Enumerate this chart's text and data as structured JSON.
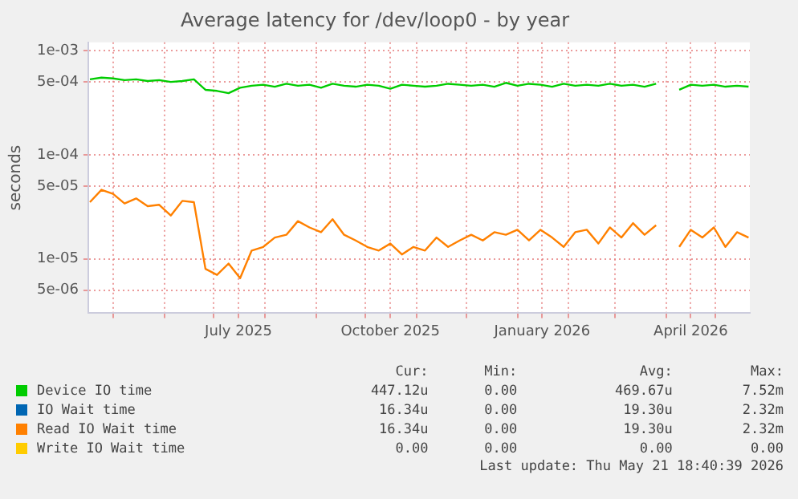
{
  "chart_data": {
    "type": "line",
    "title": "Average latency for /dev/loop0 - by year",
    "ylabel": "seconds",
    "log": "y",
    "grid": true,
    "legend": "bottom",
    "marker": "none",
    "line_style": "solid",
    "x": [
      "2025-04-17",
      "2025-04-24",
      "2025-05-01",
      "2025-05-08",
      "2025-05-15",
      "2025-05-22",
      "2025-05-29",
      "2025-06-05",
      "2025-06-12",
      "2025-06-19",
      "2025-06-26",
      "2025-07-03",
      "2025-07-10",
      "2025-07-17",
      "2025-07-24",
      "2025-07-31",
      "2025-08-07",
      "2025-08-14",
      "2025-08-21",
      "2025-08-28",
      "2025-09-04",
      "2025-09-11",
      "2025-09-18",
      "2025-09-25",
      "2025-10-02",
      "2025-10-09",
      "2025-10-16",
      "2025-10-23",
      "2025-10-30",
      "2025-11-06",
      "2025-11-13",
      "2025-11-20",
      "2025-11-27",
      "2025-12-04",
      "2025-12-11",
      "2025-12-18",
      "2025-12-25",
      "2026-01-01",
      "2026-01-08",
      "2026-01-15",
      "2026-01-22",
      "2026-01-29",
      "2026-02-05",
      "2026-02-12",
      "2026-02-19",
      "2026-02-26",
      "2026-03-05",
      "2026-03-12",
      "2026-03-19",
      "2026-03-26",
      "2026-04-02",
      "2026-04-09",
      "2026-04-16",
      "2026-04-23",
      "2026-04-30",
      "2026-05-07",
      "2026-05-14",
      "2026-05-21"
    ],
    "xlim": [
      "2025-04-16",
      "2026-05-21T18:40"
    ],
    "xticks": [
      {
        "value": "2025-05-01",
        "label": null
      },
      {
        "value": "2025-06-01",
        "label": null
      },
      {
        "value": "2025-07-01",
        "label": null
      },
      {
        "value": "2025-07-16",
        "label": "July 2025"
      },
      {
        "value": "2025-08-01",
        "label": null
      },
      {
        "value": "2025-09-01",
        "label": null
      },
      {
        "value": "2025-10-01",
        "label": null
      },
      {
        "value": "2025-10-16",
        "label": "October 2025"
      },
      {
        "value": "2025-11-01",
        "label": null
      },
      {
        "value": "2025-12-01",
        "label": null
      },
      {
        "value": "2026-01-01",
        "label": null
      },
      {
        "value": "2026-01-16",
        "label": "January 2026"
      },
      {
        "value": "2026-02-01",
        "label": null
      },
      {
        "value": "2026-03-01",
        "label": null
      },
      {
        "value": "2026-04-01",
        "label": null
      },
      {
        "value": "2026-04-16",
        "label": "April 2026"
      },
      {
        "value": "2026-05-01",
        "label": null
      }
    ],
    "ylim": [
      3e-06,
      0.0012
    ],
    "yticks": [
      {
        "value": 0.001,
        "label": "1e-03"
      },
      {
        "value": 0.0005,
        "label": "5e-04"
      },
      {
        "value": 0.0001,
        "label": "1e-04"
      },
      {
        "value": 5e-05,
        "label": "5e-05"
      },
      {
        "value": 1e-05,
        "label": "1e-05"
      },
      {
        "value": 5e-06,
        "label": "5e-06"
      }
    ],
    "series": [
      {
        "name": "Device IO time",
        "color": "#00cc00",
        "values": [
          0.00053,
          0.00055,
          0.00054,
          0.00052,
          0.00053,
          0.00051,
          0.00052,
          0.0005,
          0.00051,
          0.00053,
          0.00042,
          0.00041,
          0.00039,
          0.00044,
          0.00046,
          0.00047,
          0.00045,
          0.00048,
          0.00046,
          0.00047,
          0.00044,
          0.00048,
          0.00046,
          0.00045,
          0.00047,
          0.00046,
          0.00043,
          0.00047,
          0.00046,
          0.00045,
          0.00046,
          0.00048,
          0.00047,
          0.00046,
          0.00047,
          0.00045,
          0.00049,
          0.00046,
          0.00048,
          0.00047,
          0.00045,
          0.00048,
          0.00046,
          0.00047,
          0.00046,
          0.00048,
          0.00046,
          0.00047,
          0.00045,
          0.00048,
          null,
          0.00042,
          0.00047,
          0.00046,
          0.00047,
          0.00045,
          0.00046,
          0.00045
        ]
      },
      {
        "name": "IO Wait time",
        "color": "#0066b3",
        "values": [
          null,
          null,
          null,
          null,
          null,
          null,
          null,
          null,
          null,
          null,
          null,
          null,
          null,
          null,
          null,
          null,
          null,
          null,
          null,
          null,
          null,
          null,
          null,
          null,
          null,
          null,
          null,
          null,
          null,
          null,
          null,
          null,
          null,
          null,
          null,
          null,
          null,
          null,
          null,
          null,
          null,
          null,
          null,
          null,
          null,
          null,
          null,
          null,
          null,
          null,
          null,
          null,
          null,
          null,
          null,
          null,
          null,
          null
        ]
      },
      {
        "name": "Read IO Wait time",
        "color": "#ff8000",
        "values": [
          3.5e-05,
          4.6e-05,
          4.2e-05,
          3.4e-05,
          3.8e-05,
          3.2e-05,
          3.3e-05,
          2.6e-05,
          3.6e-05,
          3.5e-05,
          8e-06,
          7e-06,
          9e-06,
          6.5e-06,
          1.2e-05,
          1.3e-05,
          1.6e-05,
          1.7e-05,
          2.3e-05,
          2e-05,
          1.8e-05,
          2.4e-05,
          1.7e-05,
          1.5e-05,
          1.3e-05,
          1.2e-05,
          1.4e-05,
          1.1e-05,
          1.3e-05,
          1.2e-05,
          1.6e-05,
          1.3e-05,
          1.5e-05,
          1.7e-05,
          1.5e-05,
          1.8e-05,
          1.7e-05,
          1.9e-05,
          1.5e-05,
          1.9e-05,
          1.6e-05,
          1.3e-05,
          1.8e-05,
          1.9e-05,
          1.4e-05,
          2e-05,
          1.6e-05,
          2.2e-05,
          1.7e-05,
          2.1e-05,
          null,
          1.3e-05,
          1.9e-05,
          1.6e-05,
          2e-05,
          1.3e-05,
          1.8e-05,
          1.6e-05
        ]
      },
      {
        "name": "Write IO Wait time",
        "color": "#ffcc00",
        "values": [
          null,
          null,
          null,
          null,
          null,
          null,
          null,
          null,
          null,
          null,
          null,
          null,
          null,
          null,
          null,
          null,
          null,
          null,
          null,
          null,
          null,
          null,
          null,
          null,
          null,
          null,
          null,
          null,
          null,
          null,
          null,
          null,
          null,
          null,
          null,
          null,
          null,
          null,
          null,
          null,
          null,
          null,
          null,
          null,
          null,
          null,
          null,
          null,
          null,
          null,
          null,
          null,
          null,
          null,
          null,
          null,
          null,
          null
        ]
      }
    ],
    "annotations": [
      "Cur:",
      "Min:",
      "Avg:",
      "Max:",
      "447.12u",
      "0.00",
      "469.67u",
      "7.52m",
      "16.34u",
      "0.00",
      "19.30u",
      "2.32m",
      "16.34u",
      "0.00",
      "19.30u",
      "2.32m",
      "0.00",
      "0.00",
      "0.00",
      "0.00",
      "Last update: Thu May 21 18:40:39 2026"
    ]
  }
}
